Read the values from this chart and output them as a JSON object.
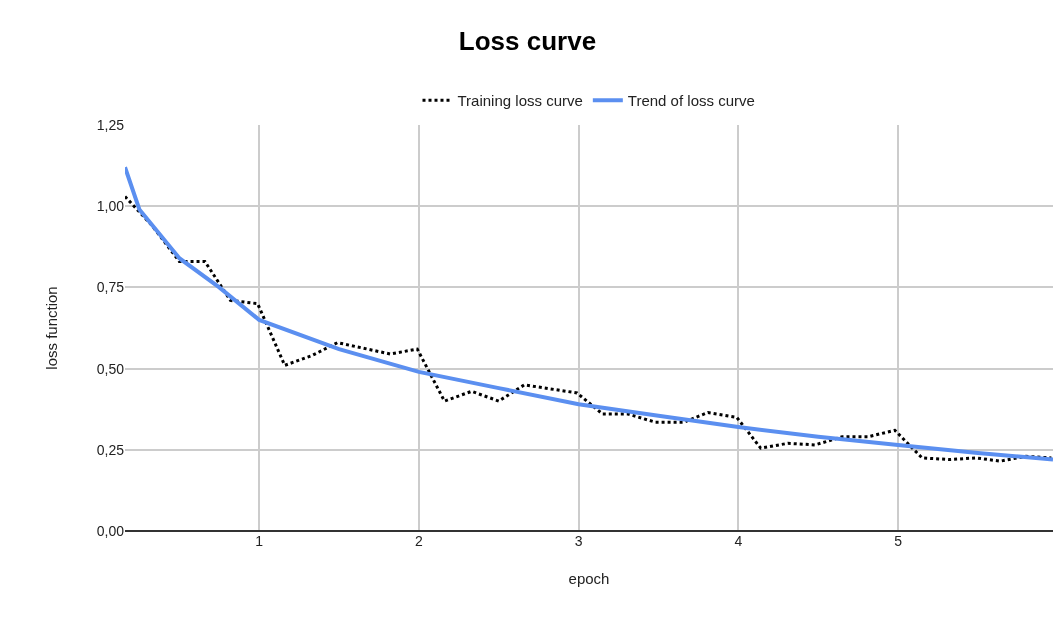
{
  "chart_data": {
    "type": "line",
    "title": "Loss curve",
    "xlabel": "epoch",
    "ylabel": "loss function",
    "xlim": [
      0.16,
      5.97
    ],
    "xticks": [
      1,
      2,
      3,
      4,
      5
    ],
    "ylim": [
      0,
      1.25
    ],
    "yticks": [
      {
        "value": 0,
        "label": "0,00"
      },
      {
        "value": 0.25,
        "label": "0,25"
      },
      {
        "value": 0.5,
        "label": "0,50"
      },
      {
        "value": 0.75,
        "label": "0,75"
      },
      {
        "value": 1,
        "label": "1,00"
      },
      {
        "value": 1.25,
        "label": "1,25"
      }
    ],
    "grid": true,
    "legend": "top",
    "series": [
      {
        "name": "Training loss curve",
        "color": "#000000",
        "line_style": "dotted",
        "x": [
          0.16,
          0.33,
          0.5,
          0.66,
          0.82,
          0.99,
          1.16,
          1.33,
          1.49,
          1.82,
          1.99,
          2.16,
          2.33,
          2.5,
          2.66,
          2.99,
          3.15,
          3.31,
          3.48,
          3.66,
          3.81,
          3.99,
          4.14,
          4.31,
          4.48,
          4.65,
          4.81,
          4.98,
          5.15,
          5.32,
          5.49,
          5.64,
          5.8,
          5.96
        ],
        "values": [
          1.03,
          0.94,
          0.83,
          0.83,
          0.71,
          0.7,
          0.51,
          0.54,
          0.58,
          0.545,
          0.56,
          0.4,
          0.43,
          0.4,
          0.45,
          0.425,
          0.36,
          0.36,
          0.335,
          0.335,
          0.365,
          0.35,
          0.255,
          0.27,
          0.265,
          0.29,
          0.29,
          0.31,
          0.225,
          0.22,
          0.225,
          0.215,
          0.23,
          0.225
        ]
      },
      {
        "name": "Trend of loss curve",
        "color": "#5b8ff0",
        "line_style": "solid",
        "x": [
          0.16,
          0.25,
          0.5,
          0.75,
          1,
          1.5,
          2,
          2.5,
          3,
          3.5,
          4,
          4.5,
          5,
          5.5,
          5.97
        ],
        "values": [
          1.12,
          0.99,
          0.84,
          0.75,
          0.65,
          0.56,
          0.49,
          0.44,
          0.39,
          0.355,
          0.32,
          0.29,
          0.265,
          0.24,
          0.22
        ]
      }
    ]
  }
}
